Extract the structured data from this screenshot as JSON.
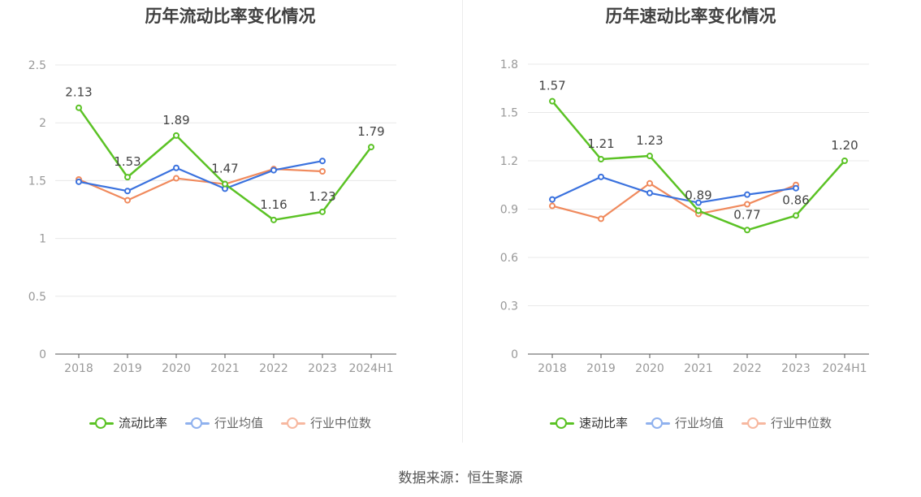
{
  "source_note": "数据来源：恒生聚源",
  "chart_data": [
    {
      "type": "line",
      "title": "历年流动比率变化情况",
      "categories": [
        "2018",
        "2019",
        "2020",
        "2021",
        "2022",
        "2023",
        "2024H1"
      ],
      "ylim": [
        0,
        2.5
      ],
      "yticks": [
        "0",
        "0.5",
        "1",
        "1.5",
        "2",
        "2.5"
      ],
      "grid": true,
      "legend_position": "bottom",
      "series": [
        {
          "name": "流动比率",
          "color": "#5bc225",
          "values": [
            2.13,
            1.53,
            1.89,
            1.47,
            1.16,
            1.23,
            1.79
          ],
          "labels": [
            "2.13",
            "1.53",
            "1.89",
            "1.47",
            "1.16",
            "1.23",
            "1.79"
          ]
        },
        {
          "name": "行业均值",
          "color": "#3b72de",
          "values": [
            1.49,
            1.41,
            1.61,
            1.43,
            1.59,
            1.67,
            null
          ]
        },
        {
          "name": "行业中位数",
          "color": "#f08a5d",
          "values": [
            1.51,
            1.33,
            1.52,
            1.47,
            1.6,
            1.58,
            null
          ]
        }
      ]
    },
    {
      "type": "line",
      "title": "历年速动比率变化情况",
      "categories": [
        "2018",
        "2019",
        "2020",
        "2021",
        "2022",
        "2023",
        "2024H1"
      ],
      "ylim": [
        0,
        1.8
      ],
      "yticks": [
        "0",
        "0.3",
        "0.6",
        "0.9",
        "1.2",
        "1.5",
        "1.8"
      ],
      "grid": true,
      "legend_position": "bottom",
      "series": [
        {
          "name": "速动比率",
          "color": "#5bc225",
          "values": [
            1.57,
            1.21,
            1.23,
            0.89,
            0.77,
            0.86,
            1.2
          ],
          "labels": [
            "1.57",
            "1.21",
            "1.23",
            "0.89",
            "0.77",
            "0.86",
            "1.20"
          ]
        },
        {
          "name": "行业均值",
          "color": "#3b72de",
          "values": [
            0.96,
            1.1,
            1.0,
            0.94,
            0.99,
            1.03,
            null
          ]
        },
        {
          "name": "行业中位数",
          "color": "#f08a5d",
          "values": [
            0.92,
            0.84,
            1.06,
            0.87,
            0.93,
            1.05,
            null
          ]
        }
      ]
    }
  ]
}
